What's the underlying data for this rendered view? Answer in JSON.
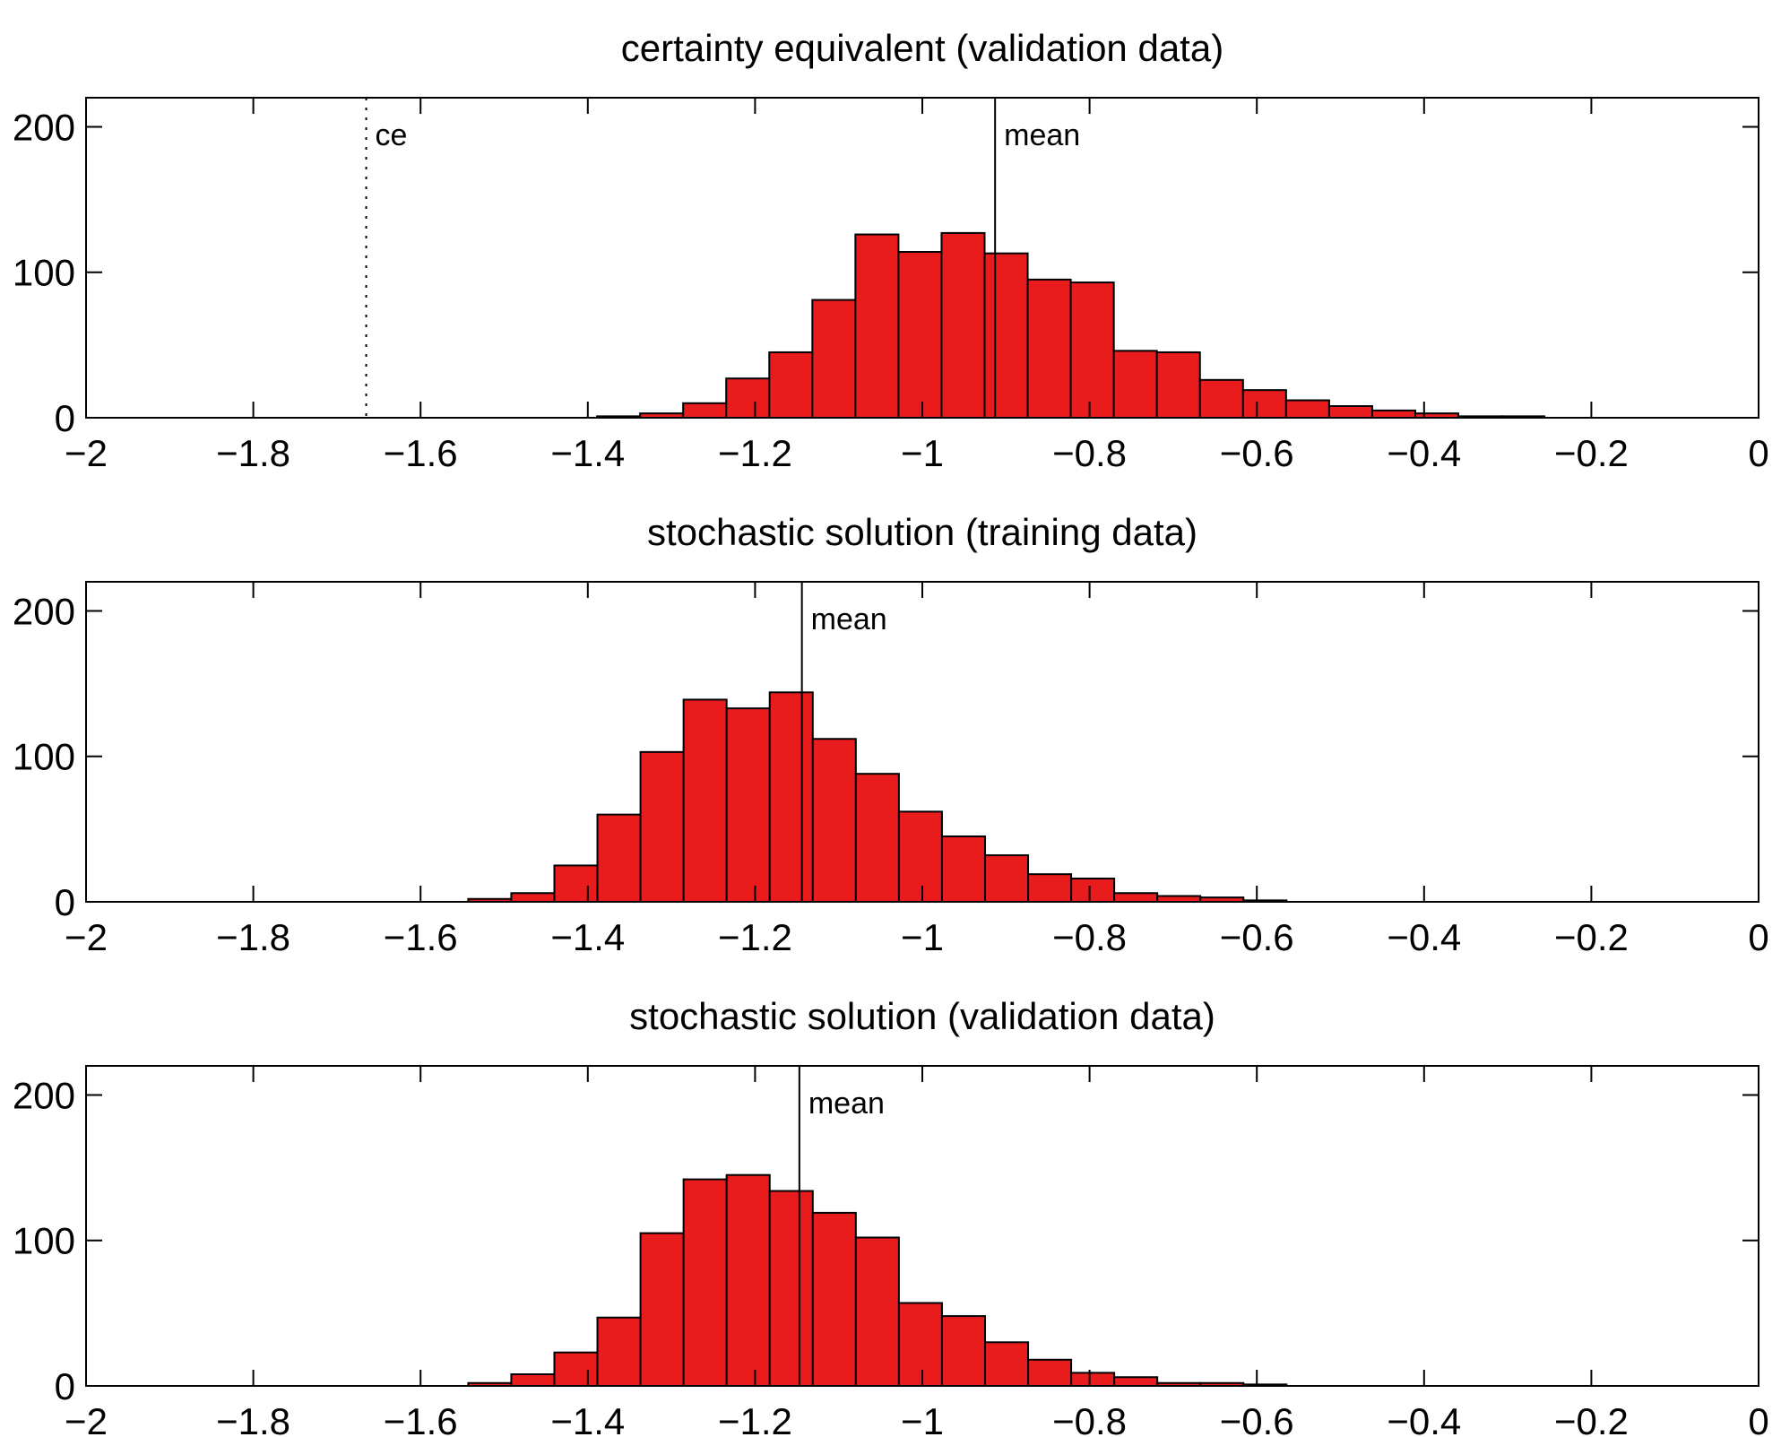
{
  "colors": {
    "bar_fill": "#e81c1c",
    "bar_edge": "#000000",
    "line": "#000000",
    "background": "#ffffff"
  },
  "chart_data": [
    {
      "type": "bar",
      "title": "certainty equivalent (validation data)",
      "xlim": [
        -2,
        0
      ],
      "ylim": [
        0,
        220
      ],
      "xticks": [
        -2,
        -1.8,
        -1.6,
        -1.4,
        -1.2,
        -1,
        -0.8,
        -0.6,
        -0.4,
        -0.2,
        0
      ],
      "xtick_labels": [
        "−2",
        "−1.8",
        "−1.6",
        "−1.4",
        "−1.2",
        "−1",
        "−0.8",
        "−0.6",
        "−0.4",
        "−0.2",
        "0"
      ],
      "yticks": [
        0,
        100,
        200
      ],
      "ytick_labels": [
        "0",
        "100",
        "200"
      ],
      "bin_width": 0.0515,
      "bin_starts": [
        -1.389,
        -1.3375,
        -1.286,
        -1.2345,
        -1.183,
        -1.1315,
        -1.08,
        -1.0285,
        -0.977,
        -0.9255,
        -0.874,
        -0.8225,
        -0.771,
        -0.7195,
        -0.668,
        -0.6165,
        -0.565,
        -0.5135,
        -0.462,
        -0.4105,
        -0.359,
        -0.3075
      ],
      "counts": [
        1,
        3,
        10,
        27,
        45,
        81,
        126,
        114,
        127,
        113,
        95,
        93,
        46,
        45,
        26,
        19,
        12,
        8,
        5,
        3,
        1,
        1
      ],
      "markers": [
        {
          "x": -1.665,
          "style": "dotted",
          "label": "ce"
        },
        {
          "x": -0.913,
          "style": "solid",
          "label": "mean"
        }
      ]
    },
    {
      "type": "bar",
      "title": "stochastic solution (training data)",
      "xlim": [
        -2,
        0
      ],
      "ylim": [
        0,
        220
      ],
      "xticks": [
        -2,
        -1.8,
        -1.6,
        -1.4,
        -1.2,
        -1,
        -0.8,
        -0.6,
        -0.4,
        -0.2,
        0
      ],
      "xtick_labels": [
        "−2",
        "−1.8",
        "−1.6",
        "−1.4",
        "−1.2",
        "−1",
        "−0.8",
        "−0.6",
        "−0.4",
        "−0.2",
        "0"
      ],
      "yticks": [
        0,
        100,
        200
      ],
      "ytick_labels": [
        "0",
        "100",
        "200"
      ],
      "bin_width": 0.0515,
      "bin_starts": [
        -1.543,
        -1.4915,
        -1.44,
        -1.3885,
        -1.337,
        -1.2855,
        -1.234,
        -1.1825,
        -1.131,
        -1.0795,
        -1.028,
        -0.9765,
        -0.925,
        -0.8735,
        -0.822,
        -0.7705,
        -0.719,
        -0.6675,
        -0.616
      ],
      "counts": [
        2,
        6,
        25,
        60,
        103,
        139,
        133,
        144,
        112,
        88,
        62,
        45,
        32,
        19,
        16,
        6,
        4,
        3,
        1
      ],
      "markers": [
        {
          "x": -1.144,
          "style": "solid",
          "label": "mean"
        }
      ]
    },
    {
      "type": "bar",
      "title": "stochastic solution (validation data)",
      "xlim": [
        -2,
        0
      ],
      "ylim": [
        0,
        220
      ],
      "xticks": [
        -2,
        -1.8,
        -1.6,
        -1.4,
        -1.2,
        -1,
        -0.8,
        -0.6,
        -0.4,
        -0.2,
        0
      ],
      "xtick_labels": [
        "−2",
        "−1.8",
        "−1.6",
        "−1.4",
        "−1.2",
        "−1",
        "−0.8",
        "−0.6",
        "−0.4",
        "−0.2",
        "0"
      ],
      "yticks": [
        0,
        100,
        200
      ],
      "ytick_labels": [
        "0",
        "100",
        "200"
      ],
      "bin_width": 0.0515,
      "bin_starts": [
        -1.543,
        -1.4915,
        -1.44,
        -1.3885,
        -1.337,
        -1.2855,
        -1.234,
        -1.1825,
        -1.131,
        -1.0795,
        -1.028,
        -0.9765,
        -0.925,
        -0.8735,
        -0.822,
        -0.7705,
        -0.719,
        -0.6675,
        -0.616
      ],
      "counts": [
        2,
        8,
        23,
        47,
        105,
        142,
        145,
        134,
        119,
        102,
        57,
        48,
        30,
        18,
        9,
        6,
        2,
        2,
        1
      ],
      "markers": [
        {
          "x": -1.147,
          "style": "solid",
          "label": "mean"
        }
      ]
    }
  ]
}
